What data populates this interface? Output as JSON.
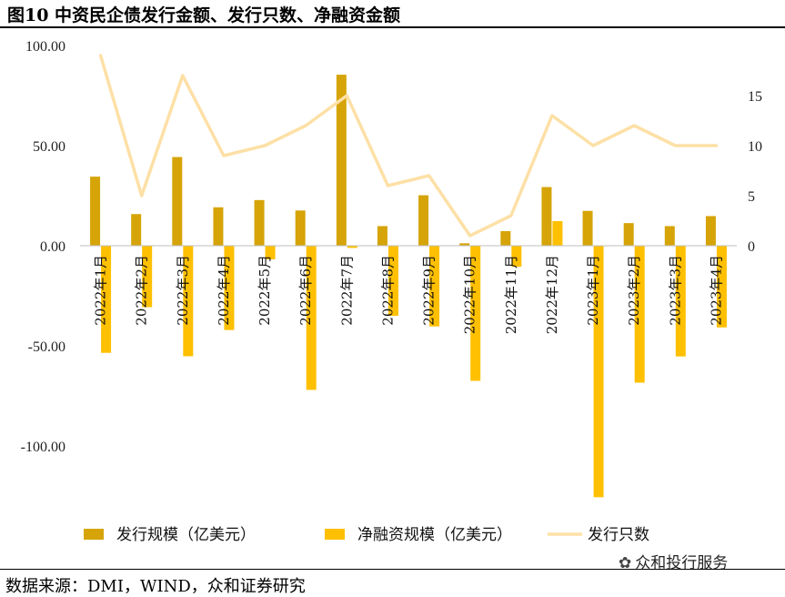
{
  "figure": {
    "title": "图10 中资民企债发行金额、发行只数、净融资金额",
    "source": "数据来源：DMI，WIND，众和证券研究",
    "watermark": "众和投行服务"
  },
  "colors": {
    "issuance": "#d6a408",
    "net": "#fec000",
    "count": "#fde0a6"
  },
  "chart_data": {
    "type": "bar",
    "categories": [
      "2022年1月",
      "2022年2月",
      "2022年3月",
      "2022年4月",
      "2022年5月",
      "2022年6月",
      "2022年7月",
      "2022年8月",
      "2022年9月",
      "2022年10月",
      "2022年11月",
      "2022年12月",
      "2023年1月",
      "2023年2月",
      "2023年3月",
      "2023年4月"
    ],
    "series": [
      {
        "name": "发行规模（亿美元）",
        "type": "bar",
        "axis": "left",
        "values": [
          34.5,
          15.8,
          44.3,
          19.2,
          22.8,
          17.6,
          85.4,
          9.8,
          25.2,
          1.2,
          7.3,
          29.3,
          17.4,
          11.3,
          9.8,
          14.8
        ]
      },
      {
        "name": "净融资规模（亿美元）",
        "type": "bar",
        "axis": "left",
        "values": [
          -53.5,
          -30.7,
          -55.2,
          -42.1,
          -6.8,
          -72.0,
          -1.1,
          -35.0,
          -40.3,
          -67.5,
          -10.5,
          12.3,
          -125.6,
          -68.4,
          -55.3,
          -40.8
        ]
      },
      {
        "name": "发行只数",
        "type": "line",
        "axis": "right",
        "values": [
          19,
          5,
          17,
          9,
          10,
          12,
          15,
          6,
          7,
          1,
          3,
          13,
          10,
          12,
          10,
          10
        ]
      }
    ],
    "y_left": {
      "ticks": [
        "100.00",
        "50.00",
        "0.00",
        "-50.00",
        "-100.00"
      ],
      "min": -150,
      "max": 100
    },
    "y_right": {
      "ticks": [
        "0",
        "5",
        "10",
        "15"
      ],
      "max": 19
    },
    "legend_position": "bottom",
    "grid": false
  }
}
